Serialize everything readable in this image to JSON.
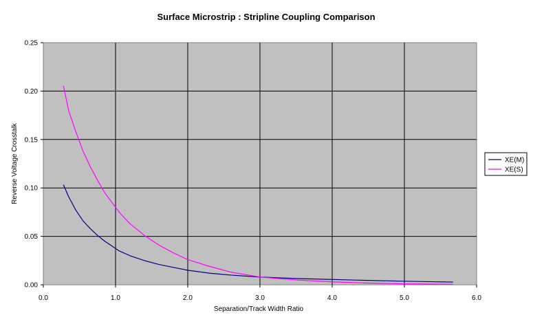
{
  "chart_data": {
    "type": "line",
    "title": "Surface Microstrip : Stripline Coupling Comparison",
    "xlabel": "Separation/Track Width    Ratio",
    "ylabel": "Reverse Voltage Crosstalk",
    "xlim": [
      0.0,
      6.0
    ],
    "ylim": [
      0.0,
      0.25
    ],
    "xticks": [
      "0.0",
      "1.0",
      "2.0",
      "3.0",
      "4.0",
      "5.0",
      "6.0"
    ],
    "yticks": [
      "0.00",
      "0.05",
      "0.10",
      "0.15",
      "0.20",
      "0.25"
    ],
    "grid": true,
    "legend_position": "right",
    "plot_background": "#c0c0c0",
    "series": [
      {
        "name": "XE(M)",
        "color": "#000080",
        "x": [
          0.28,
          0.35,
          0.45,
          0.55,
          0.65,
          0.75,
          0.85,
          0.95,
          1.05,
          1.2,
          1.4,
          1.6,
          1.8,
          2.0,
          2.3,
          2.6,
          3.0,
          3.5,
          4.0,
          4.5,
          5.0,
          5.5,
          5.67
        ],
        "y": [
          0.103,
          0.091,
          0.077,
          0.066,
          0.058,
          0.051,
          0.045,
          0.04,
          0.035,
          0.03,
          0.025,
          0.021,
          0.018,
          0.015,
          0.012,
          0.01,
          0.008,
          0.0065,
          0.0055,
          0.0045,
          0.0037,
          0.003,
          0.0028
        ]
      },
      {
        "name": "XE(S)",
        "color": "#ff00ff",
        "x": [
          0.28,
          0.35,
          0.45,
          0.55,
          0.65,
          0.75,
          0.85,
          0.95,
          1.05,
          1.2,
          1.4,
          1.6,
          1.8,
          2.0,
          2.3,
          2.6,
          3.0,
          3.5,
          4.0,
          4.5,
          5.0,
          5.5,
          5.67
        ],
        "y": [
          0.205,
          0.18,
          0.158,
          0.138,
          0.122,
          0.108,
          0.095,
          0.085,
          0.075,
          0.063,
          0.051,
          0.041,
          0.033,
          0.026,
          0.019,
          0.013,
          0.008,
          0.005,
          0.003,
          0.0018,
          0.001,
          0.0006,
          0.0005
        ]
      }
    ]
  }
}
